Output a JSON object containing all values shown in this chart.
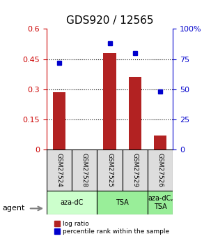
{
  "title": "GDS920 / 12565",
  "samples": [
    "GSM27524",
    "GSM27528",
    "GSM27525",
    "GSM27529",
    "GSM27526"
  ],
  "log_ratio": [
    0.285,
    0.0,
    0.48,
    0.36,
    0.07
  ],
  "percentile_rank": [
    72.0,
    null,
    88.0,
    80.0,
    48.0
  ],
  "bar_color": "#b22222",
  "dot_color": "#0000cc",
  "left_ylim": [
    0,
    0.6
  ],
  "right_ylim": [
    0,
    100
  ],
  "left_yticks": [
    0,
    0.15,
    0.3,
    0.45,
    0.6
  ],
  "right_yticks": [
    0,
    25,
    50,
    75,
    100
  ],
  "right_yticklabels": [
    "0",
    "25",
    "50",
    "75",
    "100%"
  ],
  "left_yticklabels": [
    "0",
    "0.15",
    "0.3",
    "0.45",
    "0.6"
  ],
  "agent_groups": [
    {
      "label": "aza-dC",
      "start": 0,
      "end": 2,
      "color": "#ccffcc"
    },
    {
      "label": "TSA",
      "start": 2,
      "end": 4,
      "color": "#99ee99"
    },
    {
      "label": "aza-dC,\nTSA",
      "start": 4,
      "end": 5,
      "color": "#99ee99"
    }
  ],
  "legend_bar_label": "log ratio",
  "legend_dot_label": "percentile rank within the sample",
  "agent_label": "agent",
  "bar_width": 0.5,
  "grid_color": "#000000",
  "background_plot": "#ffffff",
  "background_label": "#dddddd",
  "title_color": "#000000",
  "left_axis_color": "#cc0000",
  "right_axis_color": "#0000cc"
}
